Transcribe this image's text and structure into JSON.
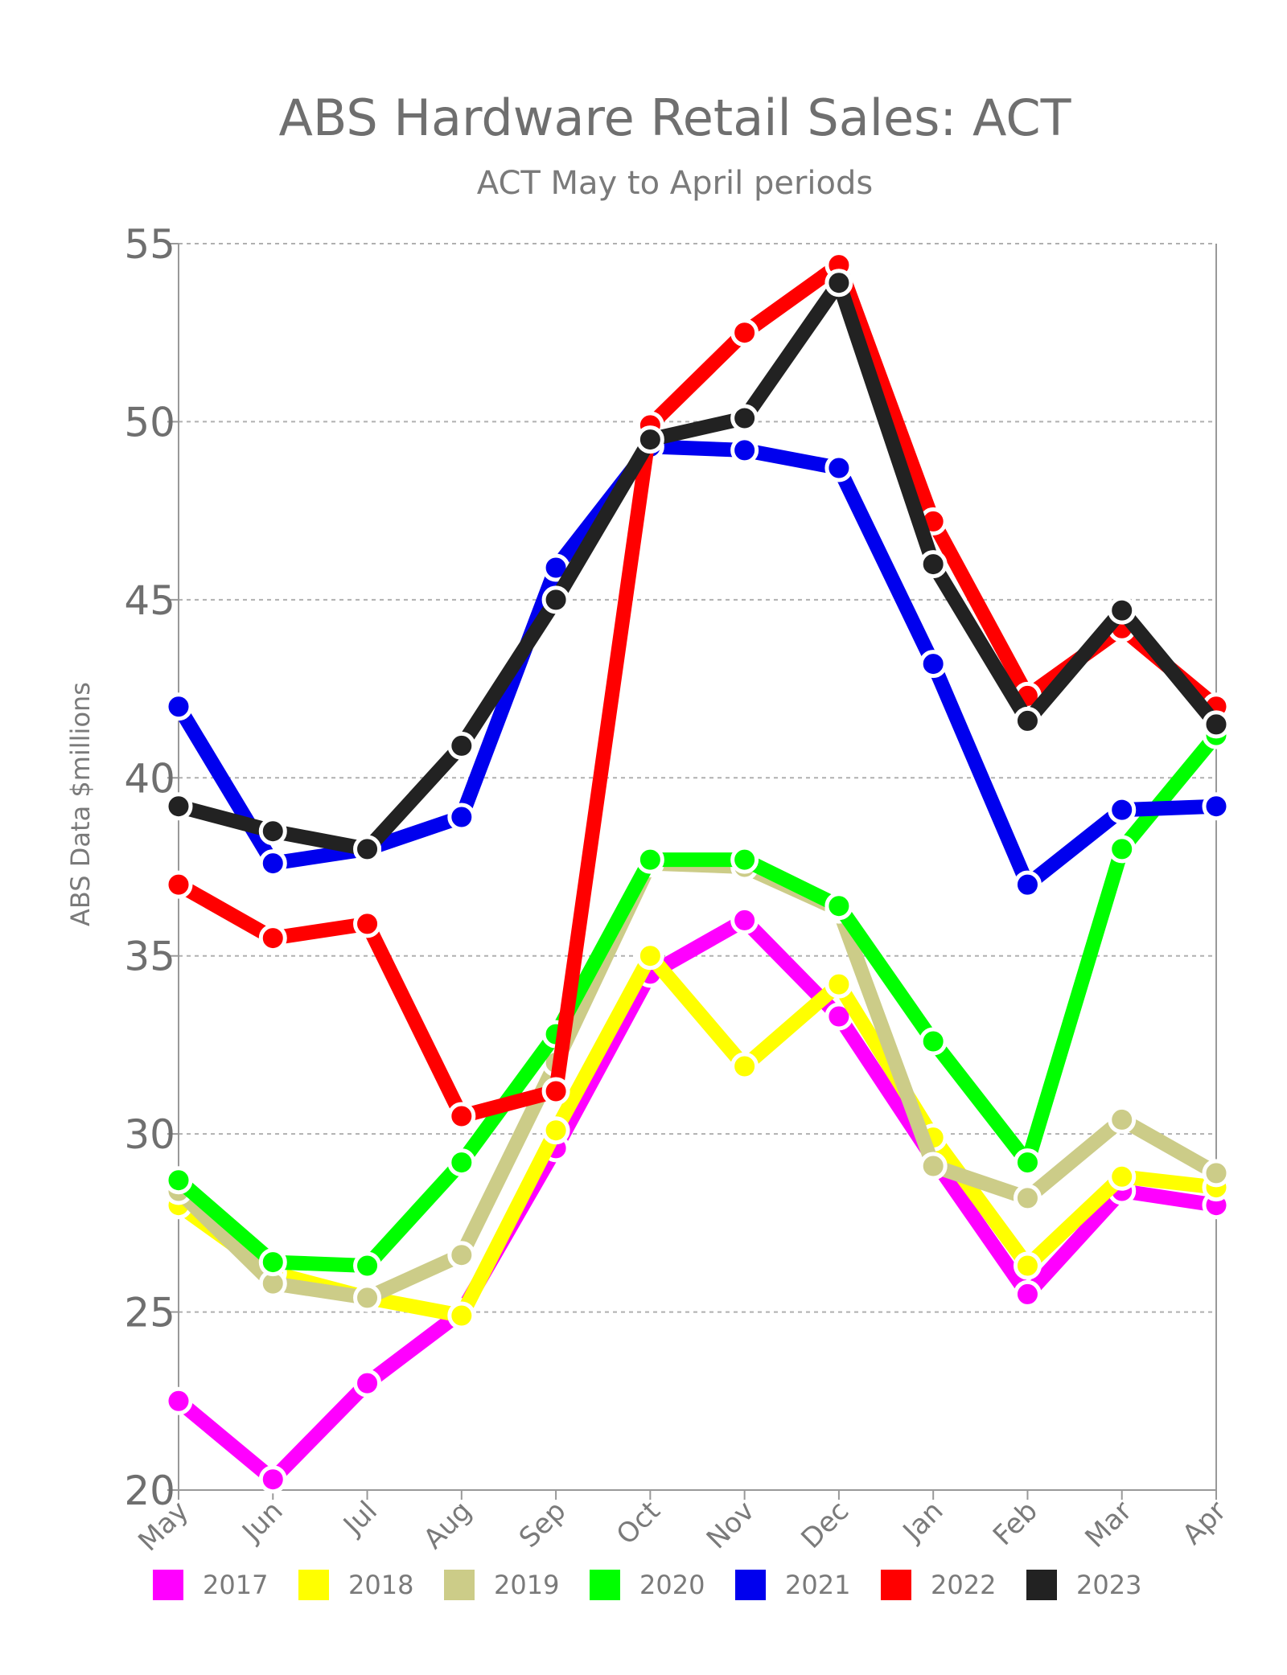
{
  "chart_data": {
    "type": "line",
    "title": "ABS Hardware Retail Sales: ACT",
    "subtitle": "ACT May to April periods",
    "ylabel": "ABS Data $millions",
    "xlabel": "",
    "categories": [
      "May",
      "Jun",
      "Jul",
      "Aug",
      "Sep",
      "Oct",
      "Nov",
      "Dec",
      "Jan",
      "Feb",
      "Mar",
      "Apr"
    ],
    "ylim": [
      20,
      55
    ],
    "yticks": [
      20,
      25,
      30,
      35,
      40,
      45,
      50,
      55
    ],
    "grid": true,
    "legend_position": "bottom",
    "series": [
      {
        "name": "2017",
        "color": "#ff00ff",
        "values": [
          22.5,
          20.3,
          23.0,
          25.0,
          29.6,
          34.5,
          36.0,
          33.3,
          29.3,
          25.5,
          28.4,
          28.0
        ]
      },
      {
        "name": "2018",
        "color": "#ffff00",
        "values": [
          28.0,
          26.1,
          25.4,
          24.9,
          30.1,
          35.0,
          31.9,
          34.2,
          29.9,
          26.3,
          28.8,
          28.5
        ]
      },
      {
        "name": "2019",
        "color": "#cccc88",
        "values": [
          28.4,
          25.8,
          25.4,
          26.6,
          32.0,
          37.6,
          37.5,
          36.3,
          29.1,
          28.2,
          30.4,
          28.9
        ]
      },
      {
        "name": "2020",
        "color": "#00ff00",
        "values": [
          28.7,
          26.4,
          26.3,
          29.2,
          32.8,
          37.7,
          37.7,
          36.4,
          32.6,
          29.2,
          38.0,
          41.2
        ]
      },
      {
        "name": "2021",
        "color": "#0000ee",
        "values": [
          42.0,
          37.6,
          38.0,
          38.9,
          45.9,
          49.3,
          49.2,
          48.7,
          43.2,
          37.0,
          39.1,
          39.2
        ]
      },
      {
        "name": "2022",
        "color": "#ff0000",
        "values": [
          37.0,
          35.5,
          35.9,
          30.5,
          31.2,
          49.9,
          52.5,
          54.4,
          47.2,
          42.3,
          44.2,
          42.0
        ]
      },
      {
        "name": "2023",
        "color": "#222222",
        "values": [
          39.2,
          38.5,
          38.0,
          40.9,
          45.0,
          49.5,
          50.1,
          53.9,
          46.0,
          41.6,
          44.7,
          41.5
        ]
      }
    ]
  }
}
